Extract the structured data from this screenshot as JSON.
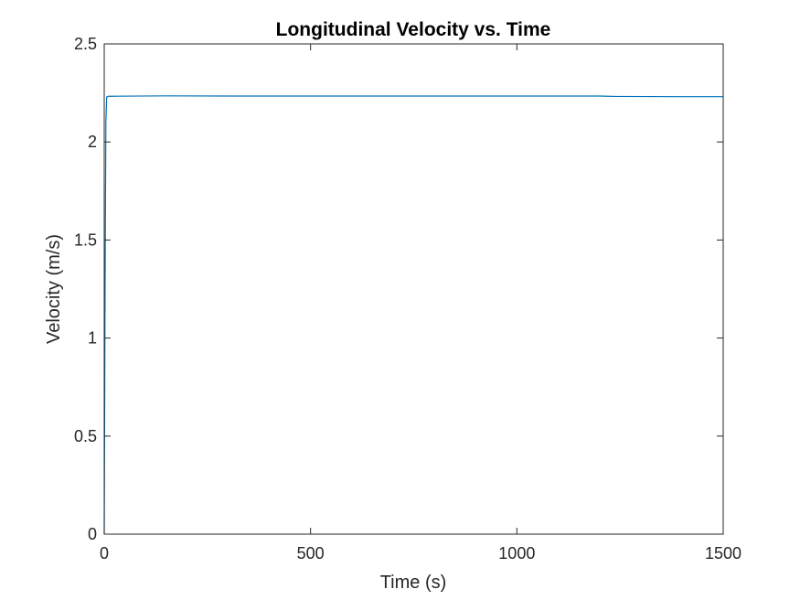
{
  "chart_data": {
    "type": "line",
    "title": "Longitudinal Velocity vs. Time",
    "xlabel": "Time (s)",
    "ylabel": "Velocity (m/s)",
    "xlim": [
      0,
      1500
    ],
    "ylim": [
      0,
      2.5
    ],
    "xticks": [
      0,
      500,
      1000,
      1500
    ],
    "xtick_labels": [
      "0",
      "500",
      "1000",
      "1500"
    ],
    "yticks": [
      0,
      0.5,
      1,
      1.5,
      2,
      2.5
    ],
    "ytick_labels": [
      "0",
      "0.5",
      "1",
      "1.5",
      "2",
      "2.5"
    ],
    "grid": false,
    "legend": "none",
    "series": [
      {
        "color": "#0072BD",
        "x": [
          0,
          2,
          4,
          6,
          10,
          20,
          150,
          300,
          600,
          900,
          1200,
          1220,
          1240,
          1400,
          1500
        ],
        "y": [
          0,
          1.2,
          2.1,
          2.23,
          2.233,
          2.233,
          2.235,
          2.234,
          2.234,
          2.234,
          2.234,
          2.233,
          2.232,
          2.231,
          2.231
        ]
      }
    ]
  },
  "colors": {
    "axis": "#262626",
    "line": "#0072BD",
    "background": "#ffffff"
  }
}
